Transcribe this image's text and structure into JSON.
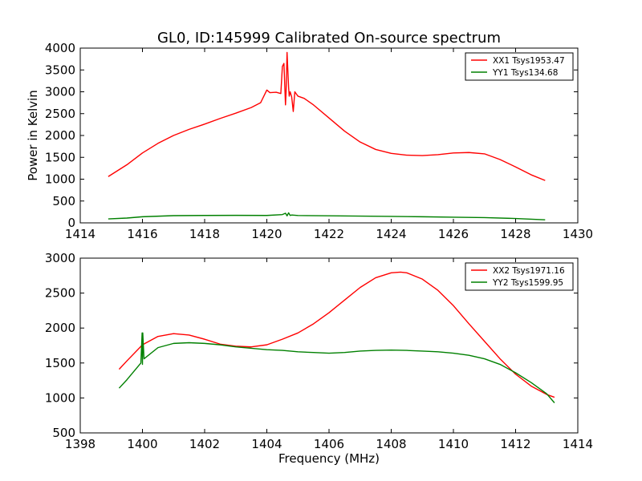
{
  "chart_data": [
    {
      "type": "line",
      "title": "GL0, ID:145999 Calibrated On-source spectrum",
      "xlabel": "",
      "ylabel": "Power in Kelvin",
      "xlim": [
        1414,
        1430
      ],
      "ylim": [
        0,
        4000
      ],
      "xticks": [
        1414,
        1416,
        1418,
        1420,
        1422,
        1424,
        1426,
        1428,
        1430
      ],
      "yticks": [
        0,
        500,
        1000,
        1500,
        2000,
        2500,
        3000,
        3500,
        4000
      ],
      "legend_position": "top-right",
      "series": [
        {
          "name": "XX1 Tsys1953.47",
          "color": "#ff0000",
          "x": [
            1414.9,
            1415.5,
            1416.0,
            1416.5,
            1417.0,
            1417.5,
            1418.0,
            1418.5,
            1419.0,
            1419.5,
            1419.8,
            1420.0,
            1420.1,
            1420.3,
            1420.45,
            1420.5,
            1420.55,
            1420.6,
            1420.62,
            1420.65,
            1420.7,
            1420.72,
            1420.75,
            1420.8,
            1420.85,
            1420.9,
            1420.95,
            1421.0,
            1421.2,
            1421.5,
            1422.0,
            1422.5,
            1423.0,
            1423.5,
            1424.0,
            1424.5,
            1425.0,
            1425.5,
            1426.0,
            1426.5,
            1427.0,
            1427.5,
            1428.0,
            1428.5,
            1428.95
          ],
          "values": [
            1060,
            1330,
            1600,
            1820,
            2000,
            2140,
            2260,
            2390,
            2510,
            2640,
            2750,
            3040,
            2980,
            2990,
            2960,
            3580,
            3650,
            2700,
            3000,
            3900,
            3100,
            2900,
            3000,
            2880,
            2550,
            3000,
            2950,
            2900,
            2850,
            2700,
            2400,
            2100,
            1850,
            1680,
            1590,
            1550,
            1540,
            1560,
            1600,
            1610,
            1580,
            1450,
            1280,
            1100,
            970
          ]
        },
        {
          "name": "YY1 Tsys134.68",
          "color": "#008000",
          "x": [
            1414.9,
            1415.5,
            1416.0,
            1417.0,
            1418.0,
            1419.0,
            1420.0,
            1420.5,
            1420.6,
            1420.65,
            1420.7,
            1420.75,
            1420.8,
            1421.0,
            1422.0,
            1423.0,
            1424.0,
            1425.0,
            1426.0,
            1427.0,
            1428.0,
            1428.95
          ],
          "values": [
            90,
            110,
            140,
            165,
            170,
            172,
            170,
            190,
            220,
            160,
            230,
            170,
            180,
            168,
            162,
            155,
            148,
            140,
            130,
            120,
            100,
            70
          ]
        }
      ]
    },
    {
      "type": "line",
      "title": "",
      "xlabel": "Frequency (MHz)",
      "ylabel": "",
      "xlim": [
        1398,
        1414
      ],
      "ylim": [
        500,
        3000
      ],
      "xticks": [
        1398,
        1400,
        1402,
        1404,
        1406,
        1408,
        1410,
        1412,
        1414
      ],
      "yticks": [
        500,
        1000,
        1500,
        2000,
        2500,
        3000
      ],
      "legend_position": "top-right",
      "series": [
        {
          "name": "XX2 Tsys1971.16",
          "color": "#ff0000",
          "x": [
            1399.25,
            1399.5,
            1400.0,
            1400.5,
            1401.0,
            1401.5,
            1402.0,
            1402.5,
            1403.0,
            1403.5,
            1404.0,
            1404.5,
            1405.0,
            1405.5,
            1406.0,
            1406.5,
            1407.0,
            1407.5,
            1408.0,
            1408.3,
            1408.5,
            1409.0,
            1409.5,
            1410.0,
            1410.5,
            1411.0,
            1411.5,
            1412.0,
            1412.5,
            1413.0,
            1413.25
          ],
          "values": [
            1410,
            1530,
            1760,
            1880,
            1920,
            1900,
            1840,
            1770,
            1740,
            1730,
            1760,
            1840,
            1930,
            2060,
            2220,
            2400,
            2580,
            2720,
            2790,
            2800,
            2790,
            2700,
            2540,
            2320,
            2060,
            1810,
            1560,
            1340,
            1170,
            1050,
            1010
          ]
        },
        {
          "name": "YY2 Tsys1599.95",
          "color": "#008000",
          "x": [
            1399.25,
            1399.5,
            1399.95,
            1399.99,
            1400.0,
            1400.01,
            1400.05,
            1400.5,
            1401.0,
            1401.5,
            1402.0,
            1402.5,
            1403.0,
            1403.5,
            1404.0,
            1404.5,
            1405.0,
            1405.5,
            1406.0,
            1406.5,
            1407.0,
            1407.5,
            1408.0,
            1408.5,
            1409.0,
            1409.5,
            1410.0,
            1410.5,
            1411.0,
            1411.5,
            1412.0,
            1412.5,
            1413.0,
            1413.25
          ],
          "values": [
            1140,
            1260,
            1500,
            1930,
            1480,
            1930,
            1560,
            1720,
            1780,
            1790,
            1780,
            1760,
            1730,
            1710,
            1690,
            1680,
            1660,
            1650,
            1640,
            1650,
            1670,
            1680,
            1685,
            1680,
            1670,
            1660,
            1640,
            1610,
            1560,
            1480,
            1360,
            1220,
            1060,
            930
          ]
        }
      ]
    }
  ]
}
